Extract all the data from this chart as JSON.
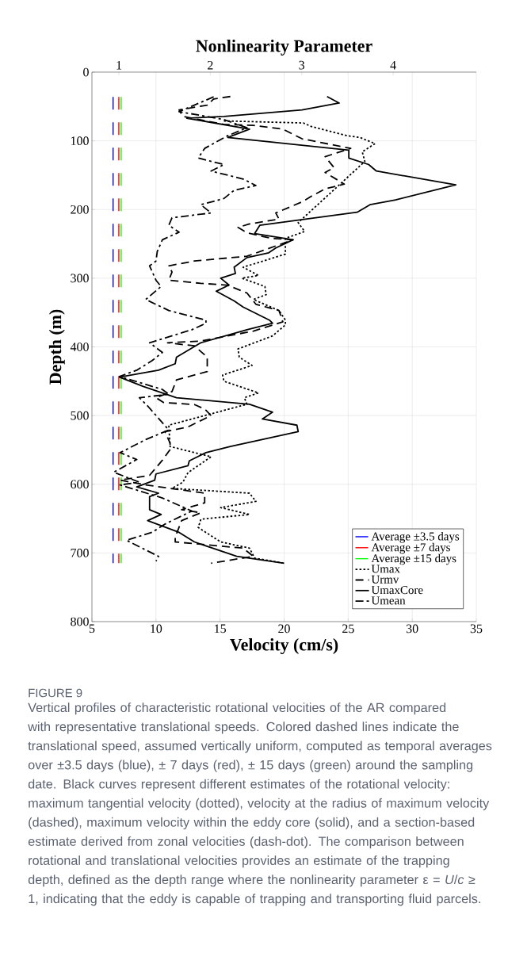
{
  "chart_data": {
    "type": "line",
    "x2label": "Nonlinearity Parameter",
    "xlabel": "Velocity (cm/s)",
    "ylabel": "Depth (m)",
    "xlim": [
      5,
      35
    ],
    "xticks": [
      5,
      10,
      15,
      20,
      25,
      30,
      35
    ],
    "x2lim": [
      0.705,
      4.91
    ],
    "x2ticks": [
      1,
      2,
      3,
      4
    ],
    "ylim": [
      800,
      0
    ],
    "yticks": [
      0,
      100,
      200,
      300,
      400,
      500,
      600,
      700,
      800
    ],
    "grid": true,
    "legend": "bottom right",
    "series": [
      {
        "name": "Average ±3.5 days",
        "color": "#0000ff",
        "line_style": "dashed",
        "x": [
          6.65,
          6.65
        ],
        "values": [
          36,
          715
        ]
      },
      {
        "name": "Average ±7 days",
        "color": "#ff0000",
        "line_style": "dashed",
        "x": [
          7.1,
          7.1
        ],
        "values": [
          36,
          715
        ]
      },
      {
        "name": "Average ±15 days",
        "color": "#00ff00",
        "line_style": "dashed",
        "x": [
          7.28,
          7.28
        ],
        "values": [
          36,
          715
        ]
      },
      {
        "name": "Umax",
        "color": "#000000",
        "line_style": "dotted",
        "x": [
          15.3,
          21.5,
          22.1,
          24.9,
          25.9,
          27.1,
          26.1,
          26.3,
          21.1,
          21.6,
          20.1,
          20.1,
          16.8,
          18.0,
          16.7,
          18.5,
          18.6,
          17.6,
          19.6,
          20.1,
          20.1,
          19.1,
          16.4,
          16.5,
          17.5,
          15.2,
          15.3,
          18.0,
          16.9,
          17.1,
          11.0,
          11.1,
          14.3,
          12.5,
          12.1,
          11.25,
          17.3,
          17.8,
          15.05,
          17.3,
          13.5,
          13.3,
          15.05,
          17.3,
          17.7,
          20.0
        ],
        "values": [
          71,
          74,
          79,
          92.5,
          95,
          104,
          116,
          130,
          219,
          232,
          242,
          265,
          284,
          296,
          300,
          312,
          324,
          331,
          347,
          361,
          368,
          384,
          403,
          415,
          427,
          441,
          450,
          467,
          474,
          483.5,
          514,
          545,
          560,
          583,
          597,
          606,
          613,
          625,
          634,
          644,
          651,
          663,
          684,
          693,
          707.5,
          715
        ]
      },
      {
        "name": "Urmv",
        "color": "#000000",
        "line_style": "dashed",
        "x": [
          15.8,
          14.5,
          14.0,
          11.8,
          12.1,
          15.3,
          17.6,
          19.9,
          21.4,
          25.2,
          23.2,
          23.9,
          23.2,
          24.7,
          23.2,
          22.1,
          21.5,
          19.35,
          19.6,
          17.3,
          16.4,
          17.1,
          19.0,
          20.7,
          17.1,
          13.0,
          11.0,
          11.25,
          11.0,
          13.5,
          15.55,
          17.1,
          17.8,
          19.6,
          19.9,
          17.6,
          13.5,
          10.9,
          13.0,
          14.0,
          14.0,
          11.6,
          11.25,
          10.0,
          10.6,
          13.0,
          13.8,
          14.3,
          12.5,
          10.7,
          11.1,
          11.1,
          10.5,
          9.5,
          7.2,
          9.2,
          13.8,
          13.8,
          12.0,
          13.5,
          12.0,
          11.5,
          11.5,
          16.8,
          17.6,
          14.3
        ],
        "values": [
          35.5,
          39,
          48,
          55,
          64.5,
          76,
          77.5,
          83,
          97,
          111,
          123,
          139,
          146,
          163,
          170,
          181,
          188,
          205,
          214,
          221,
          226,
          234,
          242,
          244,
          268,
          275,
          282,
          291,
          303,
          307.5,
          310,
          321.5,
          338,
          347,
          363.5,
          377,
          391.5,
          394,
          398.5,
          415,
          436,
          448,
          465,
          474,
          481,
          484,
          490.5,
          500,
          516.5,
          523.5,
          540,
          549.5,
          565,
          587,
          594,
          601,
          613,
          627,
          637,
          641.5,
          653,
          677,
          684,
          693,
          705,
          715
        ]
      },
      {
        "name": "UmaxCore",
        "color": "#000000",
        "line_style": "solid",
        "x": [
          23.35,
          24.3,
          21.4,
          15.3,
          12.4,
          17.3,
          15.6,
          25.05,
          25.05,
          26.6,
          27.2,
          33.4,
          28.7,
          26.7,
          25.7,
          18.1,
          17.7,
          20.7,
          19.35,
          18.8,
          17.1,
          16.1,
          16.2,
          15.05,
          15.7,
          14.7,
          16.1,
          16.8,
          18.85,
          19.1,
          17.1,
          13.5,
          11.6,
          11.5,
          10.2,
          7.15,
          9.0,
          11.6,
          17.3,
          19.1,
          18.3,
          21.0,
          21.1,
          15.8,
          13.9,
          12.6,
          12.5,
          10.0,
          9.9,
          8.5,
          10.2,
          9.5,
          9.5,
          10.4,
          9.35,
          11.8,
          13.0,
          16.3,
          20.0
        ],
        "values": [
          35.5,
          45,
          55,
          64.5,
          67,
          83,
          95,
          113.5,
          125,
          134.5,
          144,
          164,
          186,
          193,
          204,
          223,
          235,
          244,
          256,
          263,
          270,
          284,
          293,
          300,
          310,
          319,
          333,
          342,
          361,
          365.6,
          375,
          394,
          415,
          424.5,
          434,
          444,
          457.5,
          474,
          483.5,
          495,
          505,
          514,
          523.5,
          545,
          554,
          566,
          573,
          585,
          594,
          604,
          613,
          618,
          637,
          644,
          653,
          670,
          684,
          705,
          715
        ]
      },
      {
        "name": "Umean",
        "color": "#000000",
        "line_style": "dashdot",
        "x": [
          14.5,
          11.8,
          15.3,
          17.1,
          15.6,
          13.8,
          13.3,
          15.3,
          14.3,
          16.8,
          17.8,
          16.1,
          15.3,
          13.5,
          14.3,
          11.25,
          11.0,
          11.8,
          10.5,
          10.1,
          10.0,
          9.5,
          10.0,
          10.4,
          9.2,
          11.0,
          13.9,
          13.9,
          12.8,
          9.5,
          10.5,
          9.7,
          8.5,
          7.15,
          10.5,
          11.0,
          8.7,
          9.35,
          9.9,
          11.0,
          9.2,
          7.2,
          8.5,
          6.7,
          8.7,
          7.2,
          10.5,
          12.8,
          10.7,
          9.7,
          7.7,
          10.2,
          10.0
        ],
        "values": [
          36,
          57.5,
          69,
          81,
          92.5,
          111,
          125,
          134.5,
          144,
          155.6,
          165,
          172,
          184,
          193,
          205,
          212,
          223,
          233,
          244,
          261,
          275,
          282,
          303,
          312,
          331,
          347,
          361,
          365.6,
          375,
          394,
          408,
          420,
          434,
          443,
          462,
          469,
          474,
          486,
          497.6,
          521,
          535,
          554,
          564,
          582.5,
          597,
          601,
          620,
          639,
          658,
          670,
          681.6,
          705,
          712
        ]
      }
    ],
    "annotations": [
      "FIGURE 9",
      "Vertical profiles of characteristic rotational velocities of the AR compared with representative translational speeds. Colored dashed lines indicate the translational speed, assumed vertically uniform, computed as temporal averages over ±3.5 days (blue), ± 7 days (red), ± 15 days (green) around the sampling date. Black curves represent different estimates of the rotational velocity: maximum tangential velocity (dotted), velocity at the radius of maximum velocity (dashed), maximum velocity within the eddy core (solid), and a section-based estimate derived from zonal velocities (dash-dot). The comparison between rotational and translational velocities provides an estimate of the trapping depth, defined as the depth range where the nonlinearity parameter ε = *U*/*c* ≥ 1, indicating that the eddy is capable of trapping and transporting fluid parcels."
    ]
  }
}
